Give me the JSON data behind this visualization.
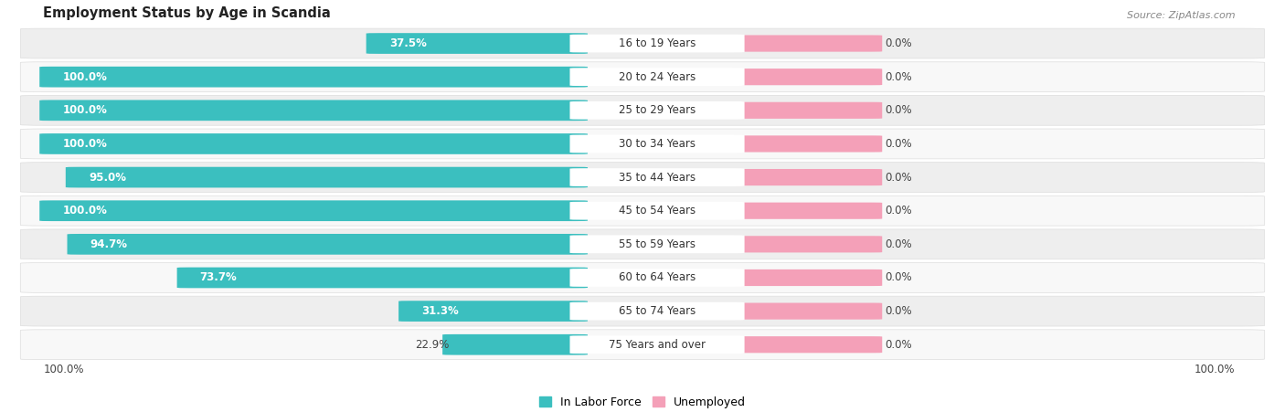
{
  "title": "Employment Status by Age in Scandia",
  "source": "Source: ZipAtlas.com",
  "age_groups": [
    "16 to 19 Years",
    "20 to 24 Years",
    "25 to 29 Years",
    "30 to 34 Years",
    "35 to 44 Years",
    "45 to 54 Years",
    "55 to 59 Years",
    "60 to 64 Years",
    "65 to 74 Years",
    "75 Years and over"
  ],
  "in_labor_force": [
    37.5,
    100.0,
    100.0,
    100.0,
    95.0,
    100.0,
    94.7,
    73.7,
    31.3,
    22.9
  ],
  "unemployed": [
    0.0,
    0.0,
    0.0,
    0.0,
    0.0,
    0.0,
    0.0,
    0.0,
    0.0,
    0.0
  ],
  "labor_color": "#3BBFBF",
  "unemployed_color": "#F4A0B8",
  "row_bg_color_odd": "#EEEEEE",
  "row_bg_color_even": "#F8F8F8",
  "row_pill_color": "#E8E8E8",
  "label_bg_color": "#FFFFFF",
  "label_fontsize": 8.5,
  "title_fontsize": 10.5,
  "source_fontsize": 8,
  "legend_fontsize": 9,
  "max_value": 100.0,
  "x_axis_left_label": "100.0%",
  "x_axis_right_label": "100.0%",
  "unemp_bar_fixed_pct": 10.0
}
